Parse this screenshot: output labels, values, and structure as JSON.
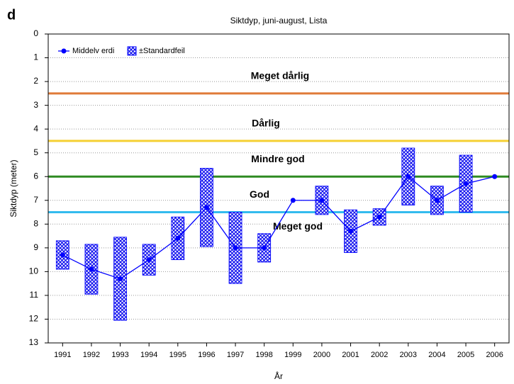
{
  "chart_data": {
    "type": "line",
    "panel": "d",
    "title": "Siktdyp, juni-august, Lista",
    "x_label": "År",
    "y_label": "Siktdyp (meter)",
    "categories": [
      "1991",
      "1992",
      "1993",
      "1994",
      "1995",
      "1996",
      "1997",
      "1998",
      "1999",
      "2000",
      "2001",
      "2002",
      "2003",
      "2004",
      "2005",
      "2006"
    ],
    "series": [
      {
        "name": "Middelv erdi",
        "color": "#0000ff",
        "values": [
          9.3,
          9.9,
          10.3,
          9.5,
          8.6,
          7.3,
          9.0,
          9.0,
          7.0,
          7.0,
          8.3,
          7.7,
          6.0,
          7.0,
          6.3,
          6.0
        ]
      },
      {
        "name": "±Standardfeil",
        "color": "#0000ff",
        "values": [
          0.6,
          1.05,
          1.75,
          0.65,
          0.9,
          1.65,
          1.5,
          0.6,
          null,
          0.6,
          0.9,
          0.35,
          1.2,
          0.6,
          1.2,
          null
        ]
      }
    ],
    "ylim": [
      0,
      13
    ],
    "y_inverted": true,
    "yticks": [
      0,
      1,
      2,
      3,
      4,
      5,
      6,
      7,
      8,
      9,
      10,
      11,
      12,
      13
    ],
    "grid": true,
    "legend": "top-left",
    "thresholds": [
      {
        "value": 2.5,
        "color": "#e07b39",
        "label": "Meget dårlig"
      },
      {
        "value": 4.5,
        "color": "#f5d033",
        "label": "Dårlig"
      },
      {
        "value": 6.0,
        "color": "#2e8b22",
        "label": "Mindre god"
      },
      {
        "value": 7.5,
        "color": "#33bbee",
        "label": "God"
      }
    ],
    "last_zone_label": "Meget god"
  }
}
